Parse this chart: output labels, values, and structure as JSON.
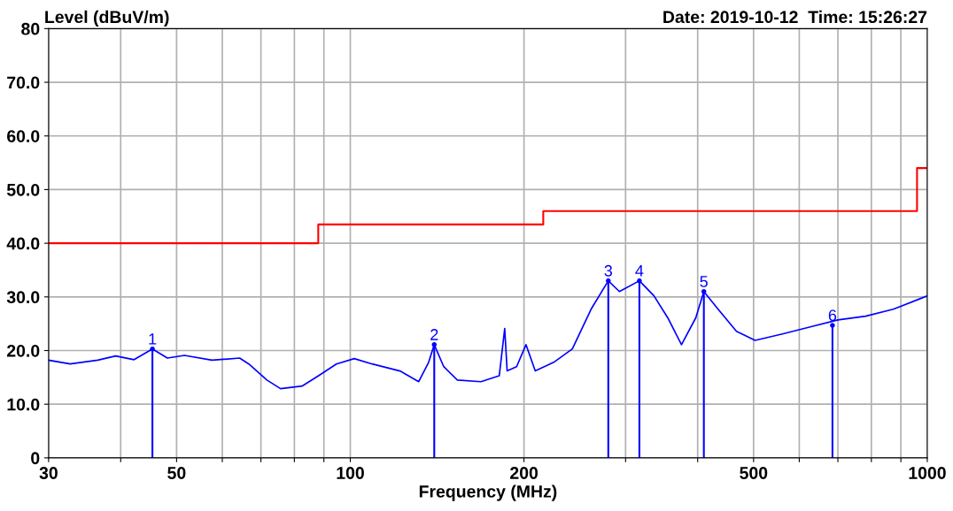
{
  "chart_data": {
    "type": "line",
    "xlabel": "Frequency (MHz)",
    "ylabel": "Level (dBuV/m)",
    "annotations": [
      "Date: 2019-10-12  Time: 15:26:27",
      {
        "text": "1",
        "x": 45.4,
        "y": 20.3
      },
      {
        "text": "2",
        "x": 139.8,
        "y": 21.1
      },
      {
        "text": "3",
        "x": 280,
        "y": 33.0
      },
      {
        "text": "4",
        "x": 317,
        "y": 33.0
      },
      {
        "text": "5",
        "x": 410,
        "y": 31.0
      },
      {
        "text": "6",
        "x": 685,
        "y": 24.7
      }
    ],
    "log": "x",
    "grid": true,
    "xlim": [
      30,
      1000
    ],
    "ylim": [
      0,
      80
    ],
    "xticks": [
      30,
      {
        "value": 40,
        "label": null
      },
      50,
      {
        "value": 60,
        "label": null
      },
      {
        "value": 70,
        "label": null
      },
      {
        "value": 80,
        "label": null
      },
      {
        "value": 90,
        "label": null
      },
      100,
      200,
      {
        "value": 300,
        "label": null
      },
      {
        "value": 400,
        "label": null
      },
      500,
      {
        "value": 600,
        "label": null
      },
      {
        "value": 700,
        "label": null
      },
      {
        "value": 800,
        "label": null
      },
      {
        "value": 900,
        "label": null
      },
      1000
    ],
    "yticks": [
      0,
      {
        "value": 10,
        "label": "10.0"
      },
      {
        "value": 20,
        "label": "20.0"
      },
      {
        "value": 30,
        "label": "30.0"
      },
      {
        "value": 40,
        "label": "40.0"
      },
      {
        "value": 50,
        "label": "50.0"
      },
      {
        "value": 60,
        "label": "60.0"
      },
      {
        "value": 70,
        "label": "70.0"
      },
      80
    ],
    "series": [
      {
        "type": "step",
        "color": "#ff0000",
        "x": [
          30,
          88,
          216,
          960,
          1000
        ],
        "values": [
          40,
          43.5,
          46,
          54,
          54
        ]
      },
      {
        "color": "#0000ff",
        "x": [
          30,
          32.7,
          36.5,
          39.2,
          42.2,
          45.4,
          48.2,
          51.6,
          57.6,
          64.3,
          66.7,
          71.7,
          75.7,
          82.6,
          88.1,
          94.6,
          101.6,
          109.1,
          121.9,
          131.4,
          136.7,
          139.8,
          145.2,
          153.3,
          168.4,
          181.2,
          185.2,
          187.0,
          194.2,
          201.6,
          209.2,
          225.2,
          242.6,
          261.4,
          280,
          292.7,
          317,
          336,
          355,
          375,
          397,
          410,
          434,
          467,
          503,
          561,
          627,
          700,
          782,
          873,
          974,
          1000
        ],
        "values": [
          18.2,
          17.5,
          18.2,
          19.0,
          18.3,
          20.3,
          18.6,
          19.1,
          18.2,
          18.6,
          17.5,
          14.5,
          12.9,
          13.4,
          15.3,
          17.5,
          18.5,
          17.5,
          16.2,
          14.2,
          17.8,
          21.1,
          17.0,
          14.5,
          14.2,
          15.3,
          24.1,
          16.2,
          17.0,
          21.1,
          16.2,
          17.8,
          20.3,
          27.7,
          33.0,
          31.0,
          33.0,
          30.2,
          26.1,
          21.1,
          26.1,
          31.0,
          27.7,
          23.6,
          21.9,
          23.1,
          24.4,
          25.7,
          26.4,
          27.7,
          29.7,
          30.2
        ]
      },
      {
        "type": "lollipop",
        "color": "#0000ff",
        "x": [
          45.4,
          139.8,
          280,
          317,
          410,
          685
        ],
        "values": [
          20.3,
          21.1,
          33.0,
          33.0,
          31.0,
          24.7
        ]
      }
    ]
  }
}
